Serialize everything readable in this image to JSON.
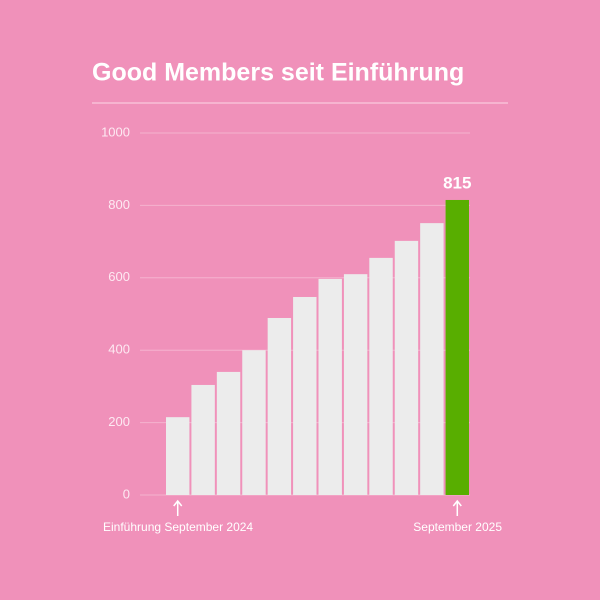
{
  "chart_data": {
    "type": "bar",
    "title": "Good Members seit Einführung",
    "categories": [
      "Einführung September 2024",
      null,
      null,
      null,
      null,
      null,
      null,
      null,
      null,
      null,
      null,
      "September 2025"
    ],
    "series": [
      {
        "values": [
          215,
          304,
          340,
          400,
          489,
          547,
          597,
          610,
          655,
          702,
          751,
          815
        ],
        "colors": [
          "#ececec",
          "#ececec",
          "#ececec",
          "#ececec",
          "#ececec",
          "#ececec",
          "#ececec",
          "#ececec",
          "#ececec",
          "#ececec",
          "#ececec",
          "#58ae00"
        ]
      }
    ],
    "ylim": [
      0,
      1000
    ],
    "yticks": [
      0,
      200,
      400,
      600,
      800,
      1000
    ],
    "grid": true
  }
}
